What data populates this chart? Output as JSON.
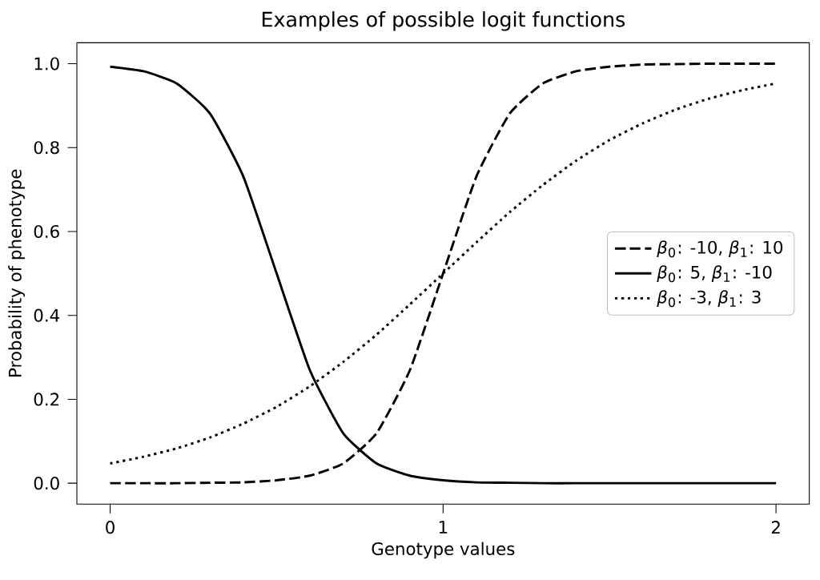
{
  "chart_data": {
    "type": "line",
    "title": "Examples of possible logit functions",
    "xlabel": "Genotype values",
    "ylabel": "Probability of phenotype",
    "x": [
      0,
      0.1,
      0.2,
      0.3,
      0.4,
      0.5,
      0.6,
      0.7,
      0.8,
      0.9,
      1.0,
      1.1,
      1.2,
      1.3,
      1.4,
      1.5,
      1.6,
      1.7,
      1.8,
      1.9,
      2.0
    ],
    "series": [
      {
        "name": "*β*$_{0}$: -10, *β*$_{1}$: 10",
        "color": "#000000",
        "line_style": "dashed",
        "values": [
          0.0,
          0.0,
          0.0,
          0.001,
          0.002,
          0.007,
          0.018,
          0.047,
          0.119,
          0.269,
          0.5,
          0.731,
          0.881,
          0.953,
          0.982,
          0.993,
          0.998,
          0.999,
          1.0,
          1.0,
          1.0
        ]
      },
      {
        "name": "*β*$_{0}$: 5, *β*$_{1}$: -10",
        "color": "#000000",
        "line_style": "solid",
        "values": [
          0.993,
          0.982,
          0.953,
          0.881,
          0.731,
          0.5,
          0.269,
          0.119,
          0.047,
          0.018,
          0.007,
          0.002,
          0.001,
          0.0,
          0.0,
          0.0,
          0.0,
          0.0,
          0.0,
          0.0,
          0.0
        ]
      },
      {
        "name": "*β*$_{0}$: -3, *β*$_{1}$: 3",
        "color": "#000000",
        "line_style": "dotted",
        "values": [
          0.047,
          0.063,
          0.083,
          0.109,
          0.142,
          0.182,
          0.231,
          0.289,
          0.354,
          0.426,
          0.5,
          0.574,
          0.646,
          0.711,
          0.769,
          0.818,
          0.858,
          0.891,
          0.917,
          0.937,
          0.953
        ]
      }
    ],
    "xlim": [
      -0.1,
      2.1
    ],
    "ylim": [
      -0.05,
      1.05
    ],
    "xticks": [
      0,
      1,
      2
    ],
    "yticks": [
      {
        "value": 0,
        "label": "0.0"
      },
      {
        "value": 0.2,
        "label": "0.2"
      },
      {
        "value": 0.4,
        "label": "0.4"
      },
      {
        "value": 0.6,
        "label": "0.6"
      },
      {
        "value": 0.8,
        "label": "0.8"
      },
      {
        "value": 1.0,
        "label": "1.0"
      }
    ],
    "grid": false,
    "legend": "right"
  }
}
